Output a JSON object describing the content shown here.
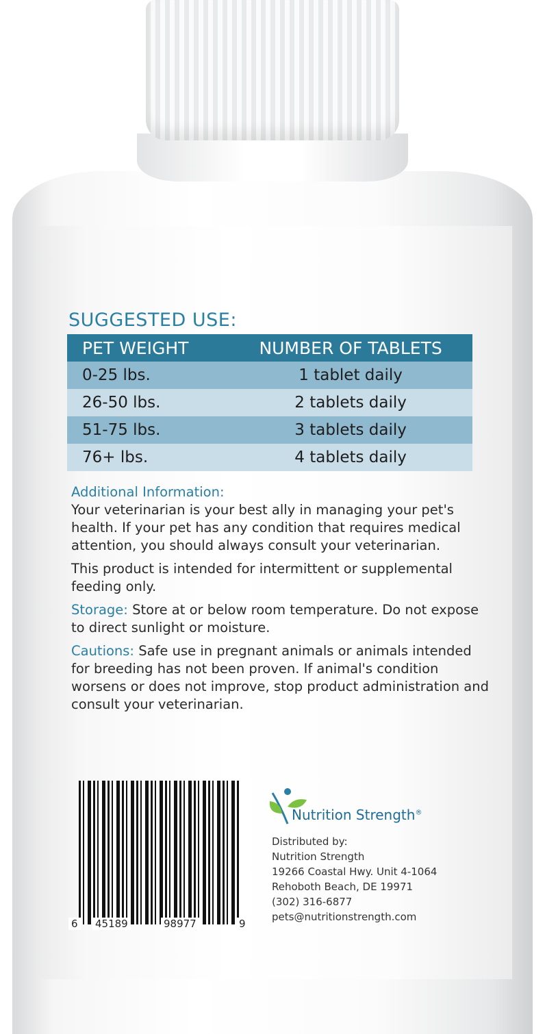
{
  "suggested_use": {
    "title": "SUGGESTED USE:",
    "headers": [
      "PET WEIGHT",
      "NUMBER OF TABLETS"
    ],
    "rows": [
      [
        "0-25 lbs.",
        "1 tablet daily"
      ],
      [
        "26-50 lbs.",
        "2 tablets daily"
      ],
      [
        "51-75 lbs.",
        "3 tablets daily"
      ],
      [
        "76+ lbs.",
        "4 tablets daily"
      ]
    ]
  },
  "additional": {
    "heading": "Additional Information:",
    "p1": "Your veterinarian is your best ally in managing your pet's health. If your pet has any condition that requires medical attention, you should always consult your veterinarian.",
    "p2": "This product is intended for intermittent or supplemental feeding only."
  },
  "storage": {
    "heading": "Storage:",
    "text": " Store at or below room temperature. Do not expose to direct sunlight or moisture."
  },
  "cautions": {
    "heading": "Cautions:",
    "text": " Safe use in pregnant animals or animals intended for breeding has not been proven. If animal's condition worsens or does not improve, stop product administration and consult your veterinarian."
  },
  "barcode": {
    "digits": [
      "6",
      "45189",
      "98977",
      "9"
    ]
  },
  "brand": {
    "name": "Nutrition Strength",
    "mark": "®"
  },
  "distributor": {
    "label": "Distributed by:",
    "name": "Nutrition Strength",
    "address1": "19266 Coastal Hwy. Unit 4-1064",
    "address2": "Rehoboth Beach, DE 19971",
    "phone": "(302) 316-6877",
    "email": "pets@nutritionstrength.com"
  },
  "colors": {
    "accent": "#2a7fa5",
    "header": "#2b7a9a",
    "row_dark": "#8fb9cf",
    "row_light": "#c9dde8",
    "leaf": "#7cc242"
  }
}
